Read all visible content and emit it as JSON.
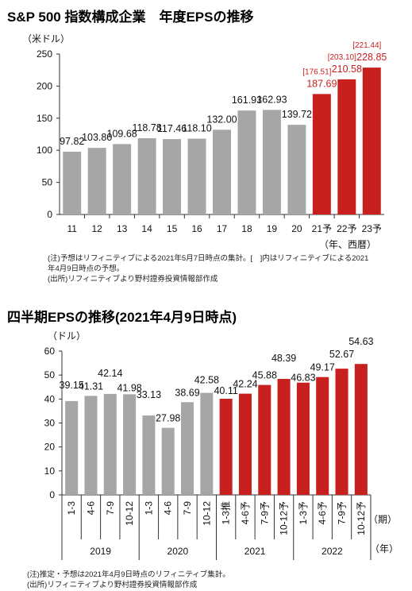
{
  "colors": {
    "actual": "#a6a6a6",
    "forecast": "#c8201f",
    "axis": "#333333",
    "text": "#111111"
  },
  "chart_data": [
    {
      "type": "bar",
      "title": "S&P 500 指数構成企業　年度EPSの推移",
      "ylabel": "（米ドル）",
      "xlabel": "（年、西暦）",
      "ylim": [
        0,
        250
      ],
      "yticks": [
        0,
        50,
        100,
        150,
        200,
        250
      ],
      "categories": [
        "11",
        "12",
        "13",
        "14",
        "15",
        "16",
        "17",
        "18",
        "19",
        "20",
        "21予",
        "22予",
        "23予"
      ],
      "values": [
        97.82,
        103.8,
        109.68,
        118.78,
        117.46,
        118.1,
        132.0,
        161.93,
        162.93,
        139.72,
        187.69,
        210.58,
        228.85
      ],
      "labels": [
        "97.82",
        "103.80",
        "109.68",
        "118.78",
        "117.46",
        "118.10",
        "132.00",
        "161.93",
        "162.93",
        "139.72",
        "187.69",
        "210.58",
        "228.85"
      ],
      "bracket_values": [
        null,
        null,
        null,
        null,
        null,
        null,
        null,
        null,
        null,
        null,
        176.51,
        203.1,
        221.44
      ],
      "bracket_labels": [
        "",
        "",
        "",
        "",
        "",
        "",
        "",
        "",
        "",
        "",
        "[176.51]",
        "[203.10]",
        "[221.44]"
      ],
      "forecast": [
        false,
        false,
        false,
        false,
        false,
        false,
        false,
        false,
        false,
        false,
        true,
        true,
        true
      ],
      "grid": false,
      "notes": [
        "(注)予想はリフィニティブによる2021年5月7日時点の集計。[　]内はリフィニティブによる2021",
        "年4月9日時点の予想。",
        "(出所)リフィニティブより野村證券投資情報部作成"
      ]
    },
    {
      "type": "bar",
      "title": "四半期EPSの推移(2021年4月9日時点)",
      "ylabel": "（ドル）",
      "xlabel": "（期）",
      "year_unit": "（年）",
      "ylim": [
        0,
        60
      ],
      "yticks": [
        0,
        10,
        20,
        30,
        40,
        50,
        60
      ],
      "categories": [
        "1-3",
        "4-6",
        "7-9",
        "10-12",
        "1-3",
        "4-6",
        "7-9",
        "10-12",
        "1-3推",
        "4-6予",
        "7-9予",
        "10-12予",
        "1-3予",
        "4-6予",
        "7-9予",
        "10-12予"
      ],
      "years": [
        "2019",
        "2020",
        "2021",
        "2022"
      ],
      "values": [
        39.15,
        41.31,
        42.14,
        41.98,
        33.13,
        27.98,
        38.69,
        42.58,
        40.11,
        42.24,
        45.88,
        48.39,
        46.83,
        49.17,
        52.67,
        54.63
      ],
      "labels": [
        "39.15",
        "41.31",
        "42.14",
        "41.98",
        "33.13",
        "27.98",
        "38.69",
        "42.58",
        "40.11",
        "42.24",
        "45.88",
        "48.39",
        "46.83",
        "49.17",
        "52.67",
        "54.63"
      ],
      "forecast": [
        false,
        false,
        false,
        false,
        false,
        false,
        false,
        false,
        true,
        true,
        true,
        true,
        true,
        true,
        true,
        true
      ],
      "grid": false,
      "notes": [
        "(注)推定・予想は2021年4月9日時点のリフィニティブ集計。",
        "(出所)リフィニティブより野村證券投資情報部作成"
      ]
    }
  ]
}
